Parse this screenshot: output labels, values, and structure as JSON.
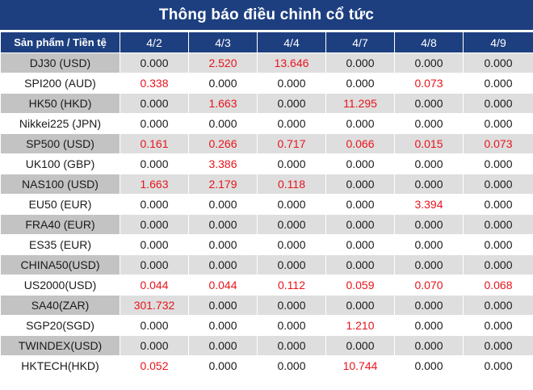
{
  "title": "Thông báo điều chỉnh cổ tức",
  "header": {
    "product_label": "Sản phẩm / Tiền tệ",
    "dates": [
      "4/2",
      "4/3",
      "4/4",
      "4/7",
      "4/8",
      "4/9"
    ]
  },
  "colors": {
    "header_bg": "#1d3f80",
    "nonzero_text": "#e8141c",
    "zero_text": "#1a1a1a",
    "shaded_product_bg": "#c3c3c3",
    "shaded_value_bg": "#dedede"
  },
  "rows": [
    {
      "product": "DJ30 (USD)",
      "values": [
        "0.000",
        "2.520",
        "13.646",
        "0.000",
        "0.000",
        "0.000"
      ]
    },
    {
      "product": "SPI200 (AUD)",
      "values": [
        "0.338",
        "0.000",
        "0.000",
        "0.000",
        "0.073",
        "0.000"
      ]
    },
    {
      "product": "HK50 (HKD)",
      "values": [
        "0.000",
        "1.663",
        "0.000",
        "11.295",
        "0.000",
        "0.000"
      ]
    },
    {
      "product": "Nikkei225 (JPN)",
      "values": [
        "0.000",
        "0.000",
        "0.000",
        "0.000",
        "0.000",
        "0.000"
      ]
    },
    {
      "product": "SP500 (USD)",
      "values": [
        "0.161",
        "0.266",
        "0.717",
        "0.066",
        "0.015",
        "0.073"
      ]
    },
    {
      "product": "UK100 (GBP)",
      "values": [
        "0.000",
        "3.386",
        "0.000",
        "0.000",
        "0.000",
        "0.000"
      ]
    },
    {
      "product": "NAS100 (USD)",
      "values": [
        "1.663",
        "2.179",
        "0.118",
        "0.000",
        "0.000",
        "0.000"
      ]
    },
    {
      "product": "EU50 (EUR)",
      "values": [
        "0.000",
        "0.000",
        "0.000",
        "0.000",
        "3.394",
        "0.000"
      ]
    },
    {
      "product": "FRA40 (EUR)",
      "values": [
        "0.000",
        "0.000",
        "0.000",
        "0.000",
        "0.000",
        "0.000"
      ]
    },
    {
      "product": "ES35 (EUR)",
      "values": [
        "0.000",
        "0.000",
        "0.000",
        "0.000",
        "0.000",
        "0.000"
      ]
    },
    {
      "product": "CHINA50(USD)",
      "values": [
        "0.000",
        "0.000",
        "0.000",
        "0.000",
        "0.000",
        "0.000"
      ]
    },
    {
      "product": "US2000(USD)",
      "values": [
        "0.044",
        "0.044",
        "0.112",
        "0.059",
        "0.070",
        "0.068"
      ]
    },
    {
      "product": "SA40(ZAR)",
      "values": [
        "301.732",
        "0.000",
        "0.000",
        "0.000",
        "0.000",
        "0.000"
      ]
    },
    {
      "product": "SGP20(SGD)",
      "values": [
        "0.000",
        "0.000",
        "0.000",
        "1.210",
        "0.000",
        "0.000"
      ]
    },
    {
      "product": "TWINDEX(USD)",
      "values": [
        "0.000",
        "0.000",
        "0.000",
        "0.000",
        "0.000",
        "0.000"
      ]
    },
    {
      "product": "HKTECH(HKD)",
      "values": [
        "0.052",
        "0.000",
        "0.000",
        "10.744",
        "0.000",
        "0.000"
      ]
    }
  ]
}
